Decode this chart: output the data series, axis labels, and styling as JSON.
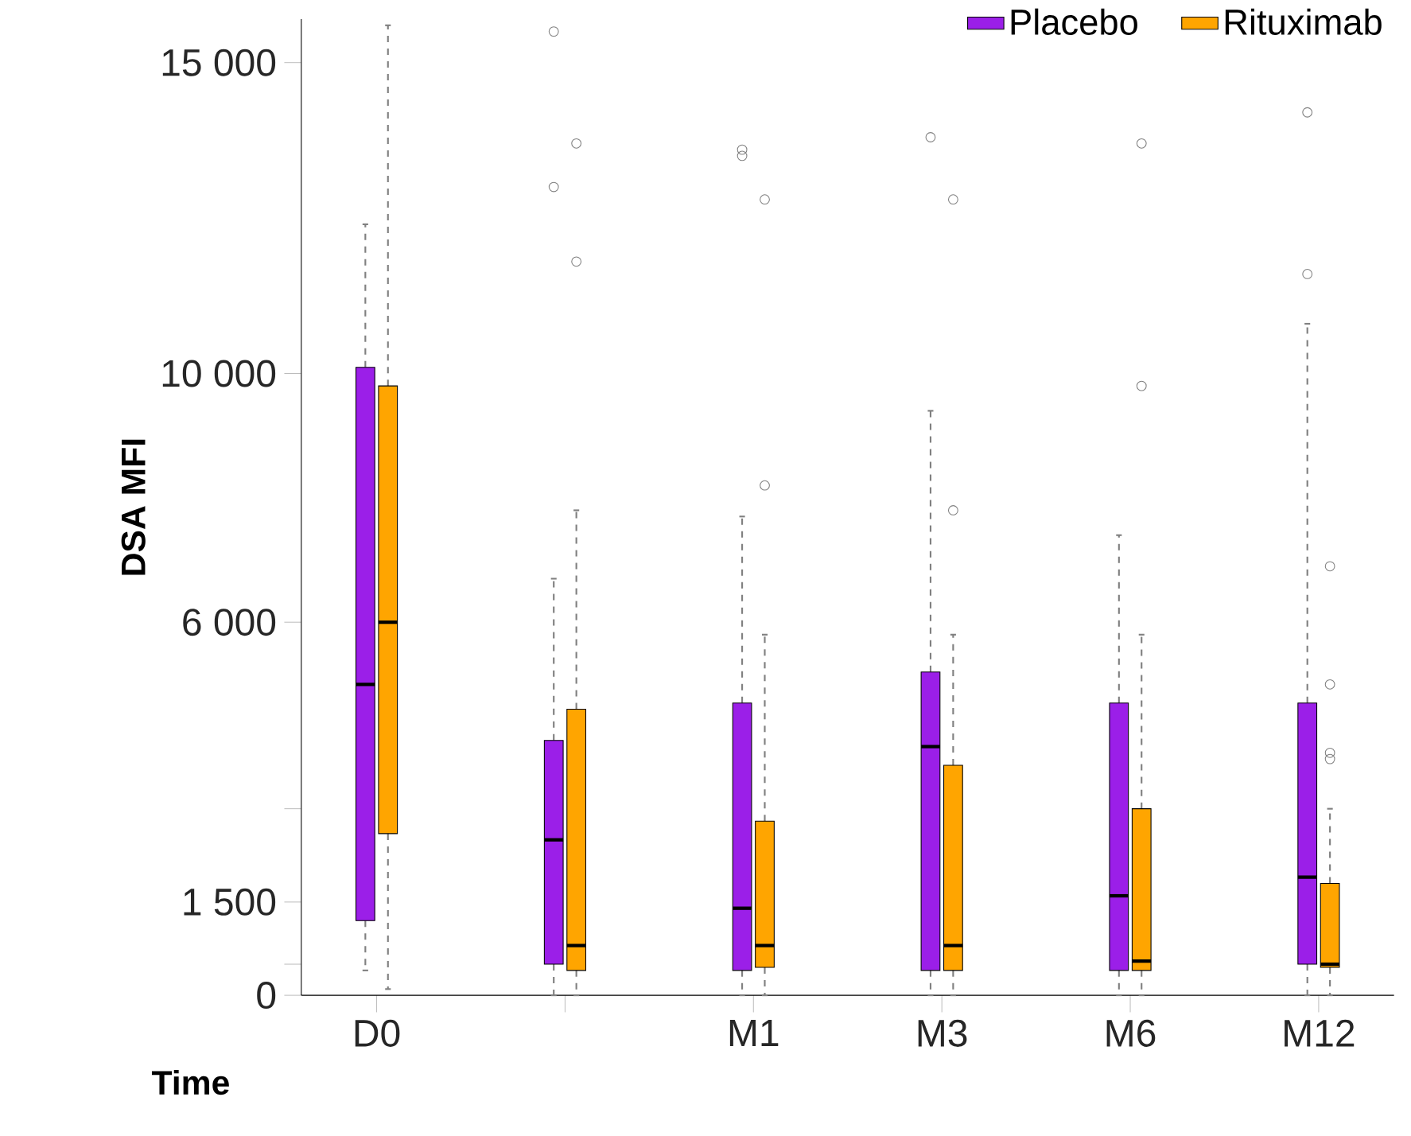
{
  "chart_data": {
    "type": "box",
    "ylabel": "DSA MFI",
    "xlabel": "Time",
    "categories": [
      "D0",
      null,
      "M1",
      "M3",
      "M6",
      "M12"
    ],
    "ylim": [
      0,
      15700
    ],
    "yticks": [
      0,
      {
        "value": 500,
        "label": null
      },
      {
        "value": 1500,
        "label": "1 500"
      },
      {
        "value": 3000,
        "label": null
      },
      {
        "value": 6000,
        "label": "6 000"
      },
      {
        "value": 10000,
        "label": "10 000"
      },
      {
        "value": 15000,
        "label": "15 000"
      }
    ],
    "legend": "top right",
    "marker": "circle",
    "line_style": "dashed",
    "series": [
      {
        "name": "Placebo",
        "color": "#9b1fe8",
        "boxes": [
          {
            "low": 400,
            "q1": 1200,
            "median": 5000,
            "q3": 10100,
            "high": 12400
          },
          {
            "low": 0,
            "q1": 500,
            "median": 2500,
            "q3": 4100,
            "high": 6700,
            "outliers": [
              15500,
              13000
            ]
          },
          {
            "low": 0,
            "q1": 400,
            "median": 1400,
            "q3": 4700,
            "high": 7700,
            "outliers": [
              13600,
              13500
            ]
          },
          {
            "low": 0,
            "q1": 400,
            "median": 4000,
            "q3": 5200,
            "high": 9400,
            "outliers": [
              13800
            ]
          },
          {
            "low": 0,
            "q1": 400,
            "median": 1600,
            "q3": 4700,
            "high": 7400
          },
          {
            "low": 0,
            "q1": 500,
            "median": 1900,
            "q3": 4700,
            "high": 10800,
            "outliers": [
              14200,
              11600
            ]
          }
        ]
      },
      {
        "name": "Rituximab",
        "color": "#ffa500",
        "boxes": [
          {
            "low": 100,
            "q1": 2600,
            "median": 6000,
            "q3": 9800,
            "high": 15600
          },
          {
            "low": 0,
            "q1": 400,
            "median": 800,
            "q3": 4600,
            "high": 7800,
            "outliers": [
              13700,
              11800
            ]
          },
          {
            "low": 0,
            "q1": 450,
            "median": 800,
            "q3": 2800,
            "high": 5800,
            "outliers": [
              12800,
              8200
            ]
          },
          {
            "low": 0,
            "q1": 400,
            "median": 800,
            "q3": 3700,
            "high": 5800,
            "outliers": [
              12800,
              7800
            ]
          },
          {
            "low": 0,
            "q1": 400,
            "median": 550,
            "q3": 3000,
            "high": 5800,
            "outliers": [
              13700,
              9800
            ]
          },
          {
            "low": 0,
            "q1": 450,
            "median": 500,
            "q3": 1800,
            "high": 3000,
            "outliers": [
              6900,
              5000,
              3900,
              3800
            ]
          }
        ]
      }
    ]
  }
}
